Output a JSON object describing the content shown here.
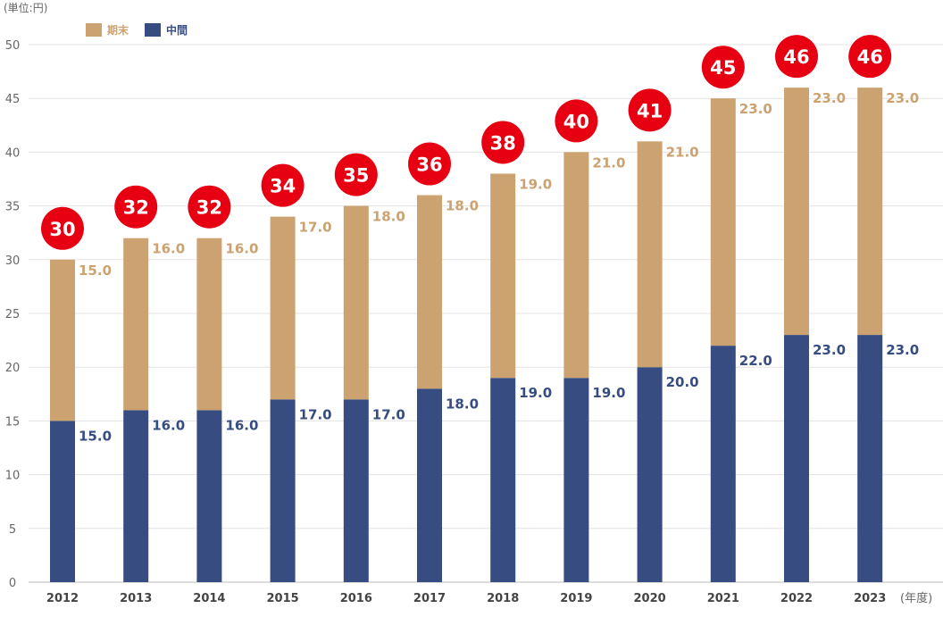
{
  "chart_data": {
    "type": "bar",
    "stacked": true,
    "unit_label": "(単位:円)",
    "xlabel": "(年度)",
    "categories": [
      "2012",
      "2013",
      "2014",
      "2015",
      "2016",
      "2017",
      "2018",
      "2019",
      "2020",
      "2021",
      "2022",
      "2023"
    ],
    "series": [
      {
        "name": "中間",
        "color": "#374d81",
        "values": [
          15.0,
          16.0,
          16.0,
          17.0,
          17.0,
          18.0,
          19.0,
          19.0,
          20.0,
          22.0,
          23.0,
          23.0
        ]
      },
      {
        "name": "期末",
        "color": "#cba270",
        "values": [
          15.0,
          16.0,
          16.0,
          17.0,
          18.0,
          18.0,
          19.0,
          21.0,
          21.0,
          23.0,
          23.0,
          23.0
        ]
      }
    ],
    "totals": [
      30,
      32,
      32,
      34,
      35,
      36,
      38,
      40,
      41,
      45,
      46,
      46
    ],
    "total_badge_color": "#e60012",
    "ylim": [
      0,
      50
    ],
    "yticks": [
      0,
      5,
      10,
      15,
      20,
      25,
      30,
      35,
      40,
      45,
      50
    ],
    "grid": true,
    "legend_position": "top-left"
  }
}
